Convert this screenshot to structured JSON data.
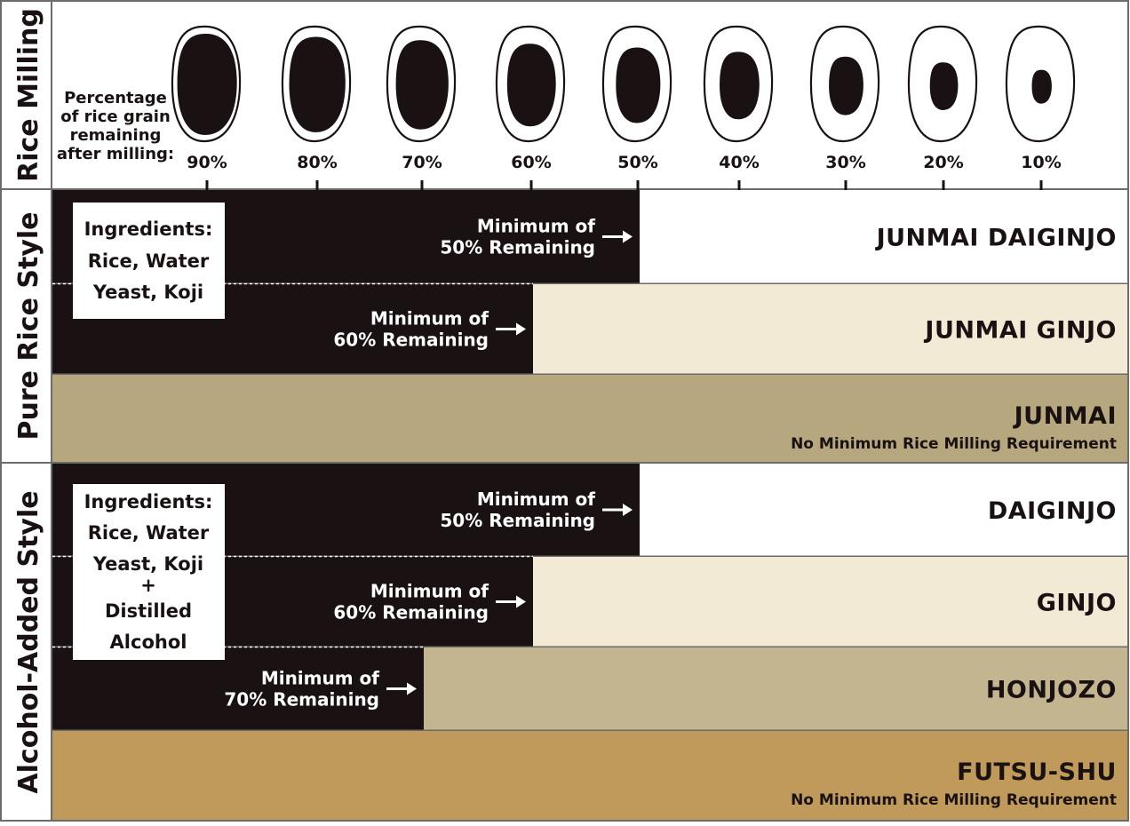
{
  "sections": {
    "milling": {
      "title": "Rice Milling",
      "caption": [
        "Percentage",
        "of rice grain",
        "remaining",
        "after milling:"
      ],
      "grains": [
        {
          "label": "90%",
          "core": 0.9
        },
        {
          "label": "80%",
          "core": 0.8
        },
        {
          "label": "70%",
          "core": 0.7
        },
        {
          "label": "60%",
          "core": 0.6
        },
        {
          "label": "50%",
          "core": 0.5
        },
        {
          "label": "40%",
          "core": 0.4
        },
        {
          "label": "30%",
          "core": 0.3
        },
        {
          "label": "20%",
          "core": 0.2
        },
        {
          "label": "10%",
          "core": 0.1
        }
      ]
    },
    "pure": {
      "title": "Pure Rice Style",
      "ingredients": [
        "Ingredients:",
        "Rice, Water",
        "Yeast, Koji"
      ]
    },
    "alcohol": {
      "title": "Alcohol-Added Style",
      "ingredients": [
        "Ingredients:",
        "Rice, Water",
        "Yeast, Koji",
        "+",
        "Distilled",
        "Alcohol"
      ]
    }
  },
  "rows": [
    {
      "grade": "JUNMAI DAIGINJO",
      "min": [
        "Minimum of",
        "50% Remaining"
      ],
      "threshold": 50,
      "color": "#ffffff",
      "note": ""
    },
    {
      "grade": "JUNMAI GINJO",
      "min": [
        "Minimum of",
        "60% Remaining"
      ],
      "threshold": 60,
      "color": "#f3ead5",
      "note": ""
    },
    {
      "grade": "JUNMAI",
      "min": [],
      "threshold": null,
      "color": "#b6a77f",
      "note": "No Minimum Rice Milling Requirement"
    },
    {
      "grade": "DAIGINJO",
      "min": [
        "Minimum of",
        "50% Remaining"
      ],
      "threshold": 50,
      "color": "#ffffff",
      "note": ""
    },
    {
      "grade": "GINJO",
      "min": [
        "Minimum of",
        "60% Remaining"
      ],
      "threshold": 60,
      "color": "#f3ead5",
      "note": ""
    },
    {
      "grade": "HONJOZO",
      "min": [
        "Minimum of",
        "70% Remaining"
      ],
      "threshold": 70,
      "color": "#c3b58f",
      "note": ""
    },
    {
      "grade": "FUTSU-SHU",
      "min": [],
      "threshold": null,
      "color": "#bf9a5a",
      "note": "No Minimum Rice Milling Requirement"
    }
  ],
  "colors": {
    "dark": "#1a1212",
    "border": "#6b6b6b"
  }
}
